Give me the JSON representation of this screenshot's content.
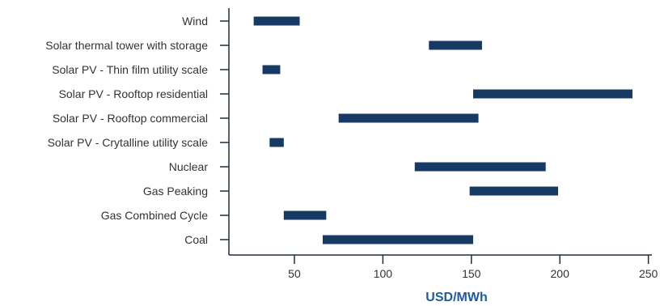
{
  "colors": {
    "bar": "#163a63",
    "axis": "#1f2d3d",
    "text": "#333333",
    "axis_title": "#1f5aa6"
  },
  "chart_data": {
    "type": "bar",
    "orientation": "horizontal-range",
    "categories": [
      "Wind",
      "Solar thermal tower with storage",
      "Solar PV - Thin film utility scale",
      "Solar PV - Rooftop residential",
      "Solar PV - Rooftop commercial",
      "Solar PV - Crytalline utility scale",
      "Nuclear",
      "Gas Peaking",
      "Gas Combined Cycle",
      "Coal"
    ],
    "ranges": [
      [
        27,
        53
      ],
      [
        126,
        156
      ],
      [
        32,
        42
      ],
      [
        151,
        241
      ],
      [
        75,
        154
      ],
      [
        36,
        44
      ],
      [
        118,
        192
      ],
      [
        149,
        199
      ],
      [
        44,
        68
      ],
      [
        66,
        151
      ]
    ],
    "xlim": [
      13,
      252
    ],
    "xticks": [
      50,
      100,
      150,
      200,
      250
    ],
    "xlabel": "USD/MWh",
    "ylabel": "",
    "title": "",
    "grid": false,
    "legend": "none"
  }
}
